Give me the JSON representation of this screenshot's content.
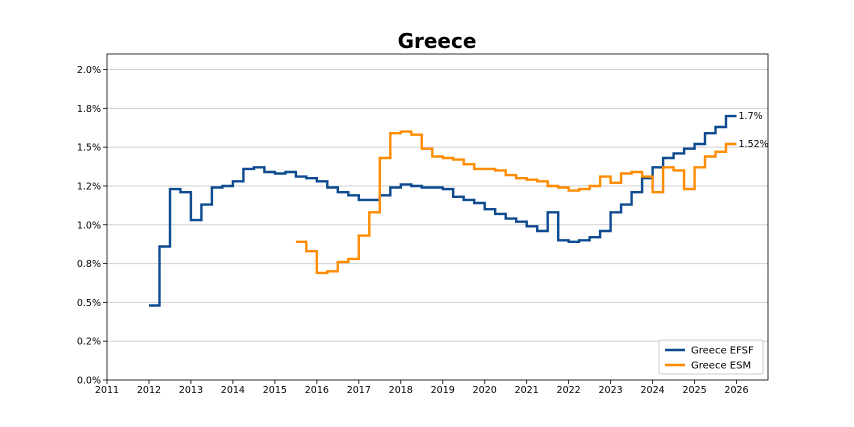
{
  "chart_data": {
    "type": "line",
    "step": true,
    "title": "Greece",
    "xlabel": "",
    "ylabel": "",
    "xlim": [
      2011,
      2026.75
    ],
    "ylim": [
      0.0,
      2.1
    ],
    "x_ticks": [
      2011,
      2012,
      2013,
      2014,
      2015,
      2016,
      2017,
      2018,
      2019,
      2020,
      2021,
      2022,
      2023,
      2024,
      2025,
      2026
    ],
    "x_tick_labels": [
      "2011",
      "2012",
      "2013",
      "2014",
      "2015",
      "2016",
      "2017",
      "2018",
      "2019",
      "2020",
      "2021",
      "2022",
      "2023",
      "2024",
      "2025",
      "2026"
    ],
    "y_ticks": [
      0.0,
      0.25,
      0.5,
      0.75,
      1.0,
      1.25,
      1.5,
      1.75,
      2.0
    ],
    "y_tick_labels": [
      "0.0%",
      "0.2%",
      "0.5%",
      "0.8%",
      "1.0%",
      "1.2%",
      "1.5%",
      "1.8%",
      "2.0%"
    ],
    "grid": true,
    "legend_position": "bottom-right",
    "series": [
      {
        "name": "Greece EFSF",
        "color": "#0d4a8f",
        "end_label": "1.7%",
        "x": [
          2012.0,
          2012.25,
          2012.5,
          2012.75,
          2013.0,
          2013.25,
          2013.5,
          2013.75,
          2014.0,
          2014.25,
          2014.5,
          2014.75,
          2015.0,
          2015.25,
          2015.5,
          2015.75,
          2016.0,
          2016.25,
          2016.5,
          2016.75,
          2017.0,
          2017.25,
          2017.5,
          2017.75,
          2018.0,
          2018.25,
          2018.5,
          2018.75,
          2019.0,
          2019.25,
          2019.5,
          2019.75,
          2020.0,
          2020.25,
          2020.5,
          2020.75,
          2021.0,
          2021.25,
          2021.5,
          2021.75,
          2022.0,
          2022.25,
          2022.5,
          2022.75,
          2023.0,
          2023.25,
          2023.5,
          2023.75,
          2024.0,
          2024.25,
          2024.5,
          2024.75,
          2025.0,
          2025.25,
          2025.5,
          2025.75,
          2026.0
        ],
        "values": [
          0.48,
          0.86,
          1.23,
          1.21,
          1.03,
          1.13,
          1.24,
          1.25,
          1.28,
          1.36,
          1.37,
          1.34,
          1.33,
          1.34,
          1.31,
          1.3,
          1.28,
          1.24,
          1.21,
          1.19,
          1.16,
          1.16,
          1.19,
          1.24,
          1.26,
          1.25,
          1.24,
          1.24,
          1.23,
          1.18,
          1.16,
          1.14,
          1.1,
          1.07,
          1.04,
          1.02,
          0.99,
          0.96,
          1.08,
          0.9,
          0.89,
          0.9,
          0.92,
          0.96,
          1.08,
          1.13,
          1.21,
          1.3,
          1.37,
          1.43,
          1.46,
          1.49,
          1.52,
          1.59,
          1.63,
          1.7,
          1.7
        ]
      },
      {
        "name": "Greece ESM",
        "color": "#ff8c00",
        "end_label": "1.52%",
        "x": [
          2015.5,
          2015.75,
          2016.0,
          2016.25,
          2016.5,
          2016.75,
          2017.0,
          2017.25,
          2017.5,
          2017.75,
          2018.0,
          2018.25,
          2018.5,
          2018.75,
          2019.0,
          2019.25,
          2019.5,
          2019.75,
          2020.0,
          2020.25,
          2020.5,
          2020.75,
          2021.0,
          2021.25,
          2021.5,
          2021.75,
          2022.0,
          2022.25,
          2022.5,
          2022.75,
          2023.0,
          2023.25,
          2023.5,
          2023.75,
          2024.0,
          2024.25,
          2024.5,
          2024.75,
          2025.0,
          2025.25,
          2025.5,
          2025.75,
          2026.0
        ],
        "values": [
          0.89,
          0.83,
          0.69,
          0.7,
          0.76,
          0.78,
          0.93,
          1.08,
          1.43,
          1.59,
          1.6,
          1.58,
          1.49,
          1.44,
          1.43,
          1.42,
          1.39,
          1.36,
          1.36,
          1.35,
          1.32,
          1.3,
          1.29,
          1.28,
          1.25,
          1.24,
          1.22,
          1.23,
          1.25,
          1.31,
          1.27,
          1.33,
          1.34,
          1.31,
          1.21,
          1.37,
          1.35,
          1.23,
          1.37,
          1.44,
          1.47,
          1.52,
          1.52
        ]
      }
    ]
  }
}
